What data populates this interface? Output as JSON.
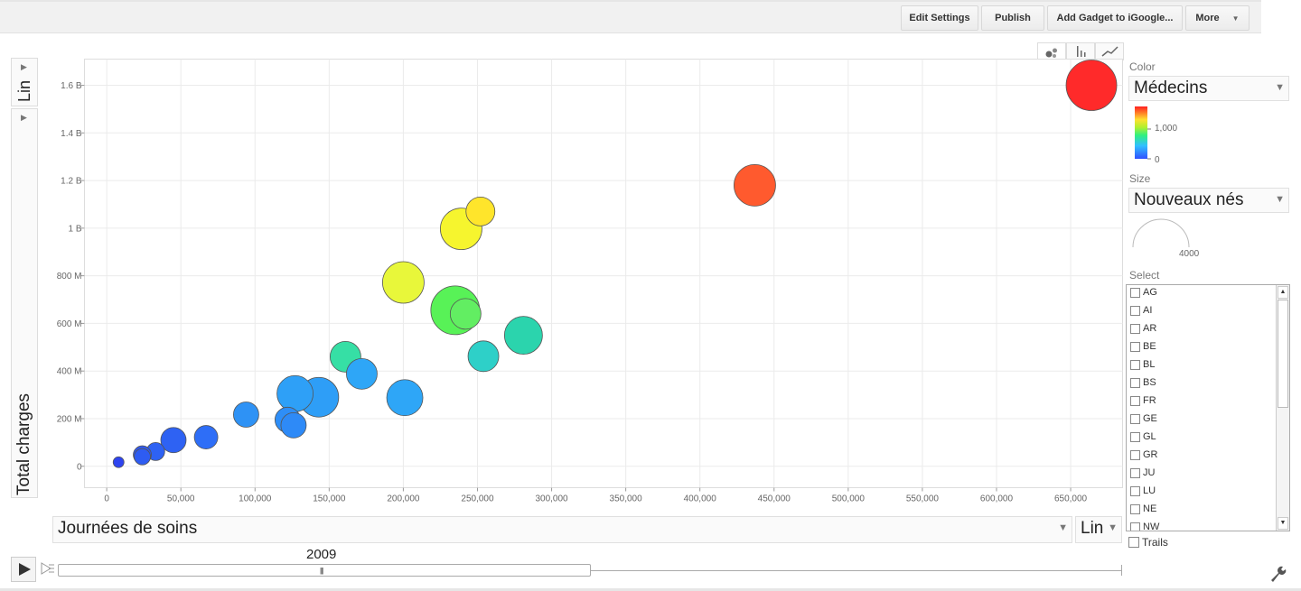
{
  "toolbar": {
    "edit_settings": "Edit Settings",
    "publish": "Publish",
    "add_gadget": "Add Gadget to iGoogle...",
    "more": "More"
  },
  "y_scale_label": "Lin",
  "x_scale_label": "Lin",
  "x_metric": "Journées de soins",
  "y_metric": "Total charges",
  "color_panel": {
    "label": "Color",
    "metric": "Médecins",
    "legend_mid": "1,000",
    "legend_min": "0"
  },
  "size_panel": {
    "label": "Size",
    "metric": "Nouveaux nés",
    "legend_value": "4000"
  },
  "select_panel": {
    "label": "Select",
    "items": [
      "AG",
      "AI",
      "AR",
      "BE",
      "BL",
      "BS",
      "FR",
      "GE",
      "GL",
      "GR",
      "JU",
      "LU",
      "NE",
      "NW"
    ],
    "trails_label": "Trails"
  },
  "timeline": {
    "year": "2009"
  },
  "colors": {
    "grid": "#ebebeb",
    "axis_text": "#666666",
    "bubble_stroke": "#555555"
  },
  "chart_data": {
    "type": "scatter",
    "subtype": "bubble",
    "xlabel": "Journées de soins",
    "ylabel": "Total charges",
    "xlim": [
      -15000,
      685000
    ],
    "ylim": [
      -90000000,
      1710000000
    ],
    "x_ticks": [
      0,
      50000,
      100000,
      150000,
      200000,
      250000,
      300000,
      350000,
      400000,
      450000,
      500000,
      550000,
      600000,
      650000
    ],
    "x_tick_labels": [
      "0",
      "50,000",
      "100,000",
      "150,000",
      "200,000",
      "250,000",
      "300,000",
      "350,000",
      "400,000",
      "450,000",
      "500,000",
      "550,000",
      "600,000",
      "650,000"
    ],
    "y_ticks": [
      0,
      200000000,
      400000000,
      600000000,
      800000000,
      1000000000,
      1200000000,
      1400000000,
      1600000000
    ],
    "y_tick_labels": [
      "0",
      "200 M",
      "400 M",
      "600 M",
      "800 M",
      "1 B",
      "1.2 B",
      "1.4 B",
      "1.6 B"
    ],
    "grid": true,
    "color_metric": "Médecins",
    "size_metric": "Nouveaux nés",
    "points": [
      {
        "x": 664000,
        "y": 1600000000,
        "color": "#ff2a2a",
        "r": 28
      },
      {
        "x": 437000,
        "y": 1180000000,
        "color": "#ff5a2e",
        "r": 23
      },
      {
        "x": 252000,
        "y": 1070000000,
        "color": "#ffe52b",
        "r": 16
      },
      {
        "x": 239000,
        "y": 997000000,
        "color": "#f6f52e",
        "r": 23
      },
      {
        "x": 200000,
        "y": 772000000,
        "color": "#e8f73a",
        "r": 23
      },
      {
        "x": 235000,
        "y": 655000000,
        "color": "#58f257",
        "r": 27
      },
      {
        "x": 242000,
        "y": 640000000,
        "color": "#62ee62",
        "r": 17
      },
      {
        "x": 281000,
        "y": 550000000,
        "color": "#2bd4ad",
        "r": 21
      },
      {
        "x": 254000,
        "y": 462000000,
        "color": "#2ed0c8",
        "r": 17
      },
      {
        "x": 161000,
        "y": 460000000,
        "color": "#36dfa5",
        "r": 17
      },
      {
        "x": 172000,
        "y": 388000000,
        "color": "#2ea6f7",
        "r": 17
      },
      {
        "x": 201000,
        "y": 288000000,
        "color": "#2ea6f7",
        "r": 20
      },
      {
        "x": 143000,
        "y": 290000000,
        "color": "#2e9ef7",
        "r": 22
      },
      {
        "x": 127000,
        "y": 305000000,
        "color": "#2ea0f7",
        "r": 20
      },
      {
        "x": 122000,
        "y": 195000000,
        "color": "#2e8ef7",
        "r": 14
      },
      {
        "x": 126000,
        "y": 172000000,
        "color": "#2e8af7",
        "r": 14
      },
      {
        "x": 94000,
        "y": 217000000,
        "color": "#2e92f5",
        "r": 14
      },
      {
        "x": 67000,
        "y": 122000000,
        "color": "#2e6ef7",
        "r": 13
      },
      {
        "x": 45000,
        "y": 110000000,
        "color": "#2e62f3",
        "r": 14
      },
      {
        "x": 33000,
        "y": 62000000,
        "color": "#2e62f3",
        "r": 10
      },
      {
        "x": 24000,
        "y": 48000000,
        "color": "#2e58f1",
        "r": 10
      },
      {
        "x": 24000,
        "y": 40000000,
        "color": "#2e5cf2",
        "r": 9
      },
      {
        "x": 8000,
        "y": 17000000,
        "color": "#2e44ef",
        "r": 6
      }
    ]
  }
}
